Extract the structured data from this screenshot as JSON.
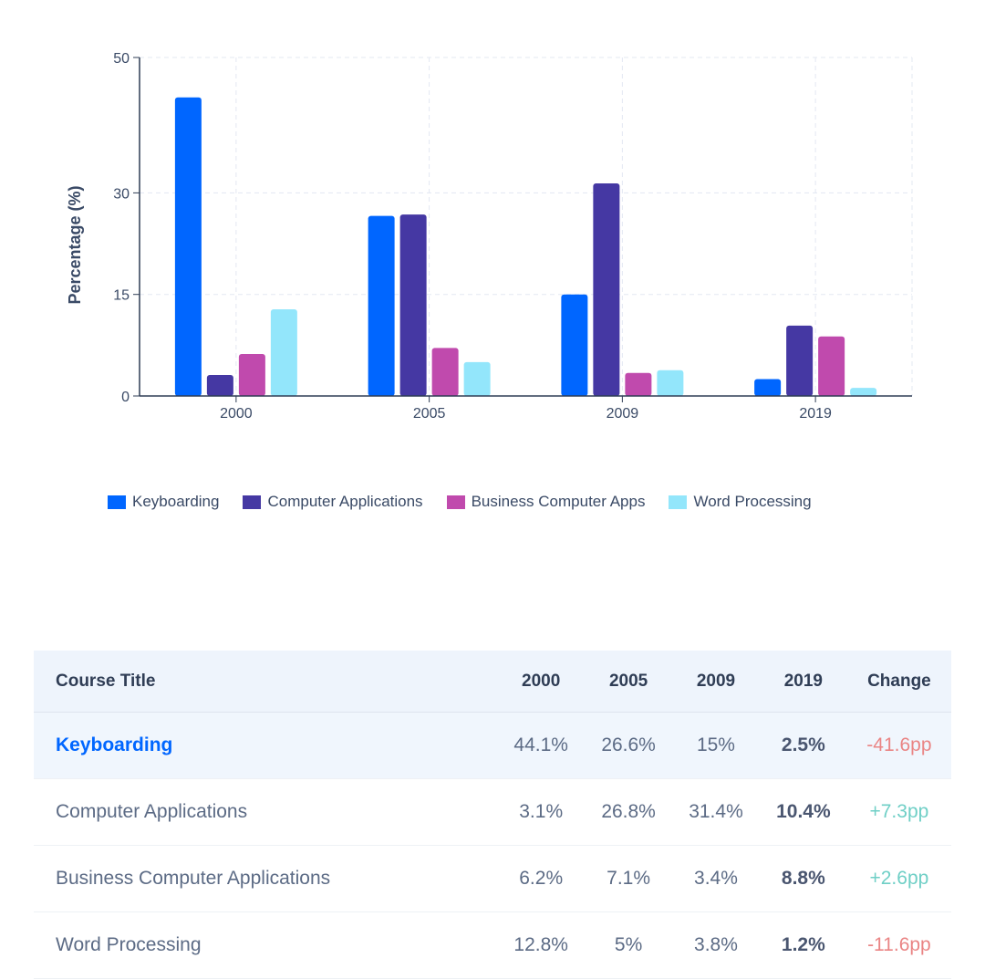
{
  "chart_data": {
    "type": "bar",
    "categories": [
      "2000",
      "2005",
      "2009",
      "2019"
    ],
    "ylabel": "Percentage (%)",
    "yticks": [
      0,
      15,
      30,
      50
    ],
    "ylim": [
      0,
      50
    ],
    "grid": true,
    "legend_position": "bottom",
    "series": [
      {
        "name": "Keyboarding",
        "color": "#0066ff",
        "values": [
          44.1,
          26.6,
          15,
          2.5
        ]
      },
      {
        "name": "Computer Applications",
        "color": "#4538a3",
        "values": [
          3.1,
          26.8,
          31.4,
          10.4
        ]
      },
      {
        "name": "Business Computer Apps",
        "color": "#c04aad",
        "values": [
          6.2,
          7.1,
          3.4,
          8.8
        ]
      },
      {
        "name": "Word Processing",
        "color": "#93e6fb",
        "values": [
          12.8,
          5,
          3.8,
          1.2
        ]
      }
    ]
  },
  "table": {
    "headers": [
      "Course Title",
      "2000",
      "2005",
      "2009",
      "2019",
      "Change"
    ],
    "rows": [
      {
        "cells": [
          "Keyboarding",
          "44.1%",
          "26.6%",
          "15%",
          "2.5%",
          "-41.6pp"
        ],
        "trend": "neg",
        "highlight": true
      },
      {
        "cells": [
          "Computer Applications",
          "3.1%",
          "26.8%",
          "31.4%",
          "10.4%",
          "+7.3pp"
        ],
        "trend": "pos"
      },
      {
        "cells": [
          "Business Computer Applications",
          "6.2%",
          "7.1%",
          "3.4%",
          "8.8%",
          "+2.6pp"
        ],
        "trend": "pos"
      },
      {
        "cells": [
          "Word Processing",
          "12.8%",
          "5%",
          "3.8%",
          "1.2%",
          "-11.6pp"
        ],
        "trend": "neg"
      }
    ]
  }
}
